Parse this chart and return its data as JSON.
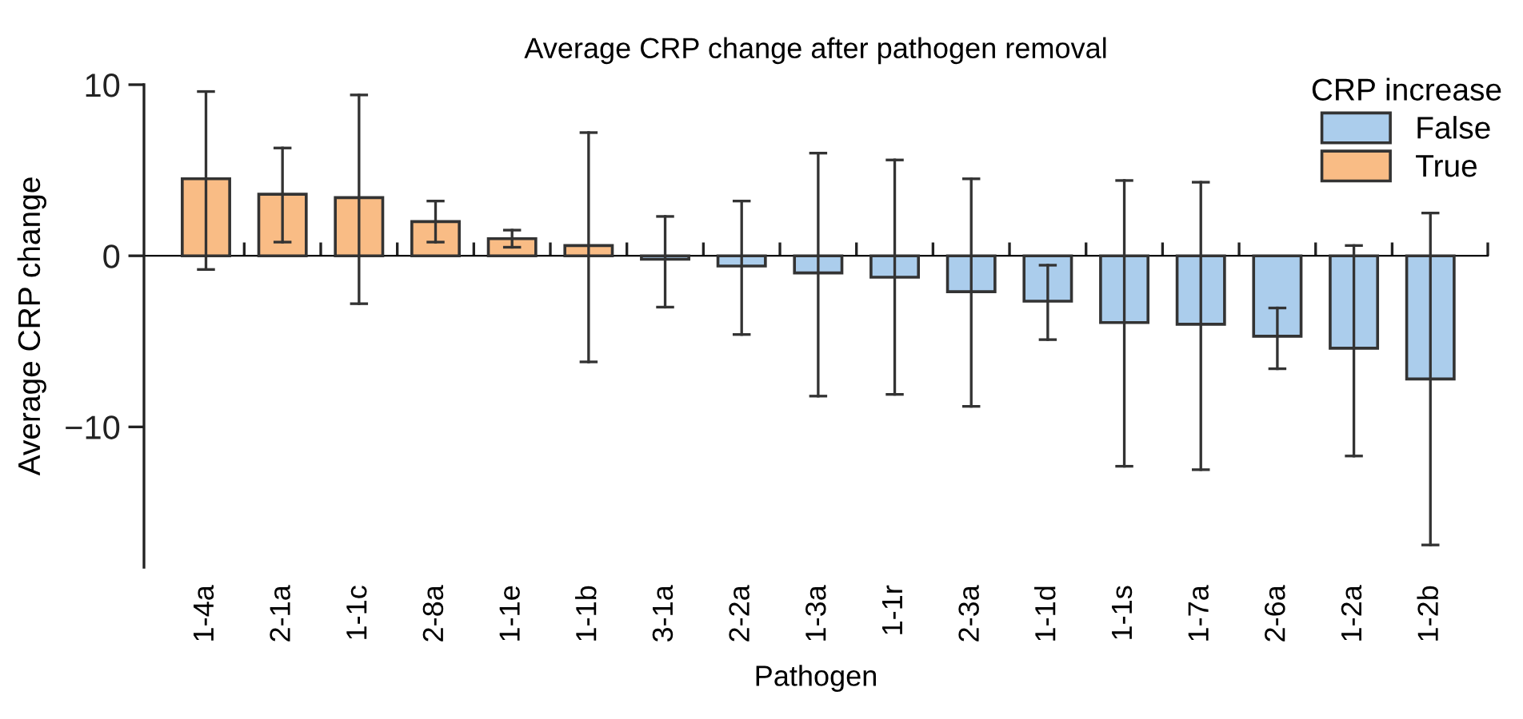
{
  "chart_data": {
    "type": "bar",
    "title": "Average CRP change after pathogen removal",
    "xlabel": "Pathogen",
    "ylabel": "Average CRP change",
    "legend_title": "CRP increase",
    "categories": [
      "1-4a",
      "2-1a",
      "1-1c",
      "2-8a",
      "1-1e",
      "1-1b",
      "3-1a",
      "2-2a",
      "1-3a",
      "1-1r",
      "2-3a",
      "1-1d",
      "1-1s",
      "1-7a",
      "2-6a",
      "1-2a",
      "1-2b"
    ],
    "series": [
      {
        "name": "False",
        "color": "#abcdec",
        "values": [
          null,
          null,
          null,
          null,
          null,
          null,
          -0.2,
          -0.6,
          -1.0,
          -1.25,
          -2.1,
          -2.65,
          -3.9,
          -4.0,
          -4.7,
          -5.4,
          -7.2
        ],
        "errors": [
          null,
          null,
          null,
          null,
          null,
          null,
          [
            -3.0,
            2.3
          ],
          [
            -4.6,
            3.2
          ],
          [
            -8.2,
            6.0
          ],
          [
            -8.1,
            5.6
          ],
          [
            -8.8,
            4.5
          ],
          [
            -4.9,
            -0.55
          ],
          [
            -12.3,
            4.4
          ],
          [
            -12.5,
            4.3
          ],
          [
            -6.6,
            -3.05
          ],
          [
            -11.7,
            0.6
          ],
          [
            -16.9,
            2.5
          ]
        ]
      },
      {
        "name": "True",
        "color": "#f9bc85",
        "values": [
          4.5,
          3.6,
          3.4,
          2.0,
          1.0,
          0.6,
          null,
          null,
          null,
          null,
          null,
          null,
          null,
          null,
          null,
          null,
          null
        ],
        "errors": [
          [
            -0.8,
            9.6
          ],
          [
            0.8,
            6.3
          ],
          [
            -2.8,
            9.4
          ],
          [
            0.8,
            3.2
          ],
          [
            0.5,
            1.5
          ],
          [
            -6.2,
            7.2
          ],
          null,
          null,
          null,
          null,
          null,
          null,
          null,
          null,
          null,
          null,
          null
        ]
      }
    ],
    "ylim": [
      -18.2,
      10
    ],
    "yticks": [
      {
        "value": -10,
        "label": "−10"
      },
      0,
      10
    ],
    "legend": "top right"
  }
}
